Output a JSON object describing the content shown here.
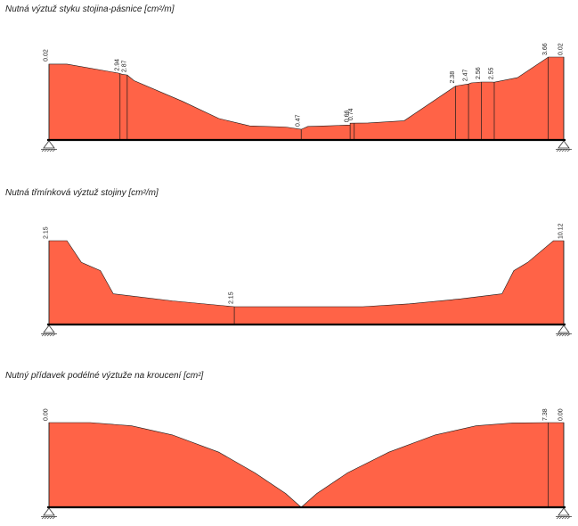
{
  "colors": {
    "fill": "#FF6347",
    "stroke": "#1a1a1a",
    "beam": "#000000"
  },
  "chart_data": [
    {
      "type": "area",
      "title": "Nutná výztuž styku stojina-pásnice [cm²/m]",
      "x_range": [
        0,
        100
      ],
      "ymax": 3.66,
      "profile": [
        [
          0,
          0.02
        ],
        [
          0,
          3.35
        ],
        [
          3.5,
          3.35
        ],
        [
          13.5,
          2.95
        ],
        [
          14.2,
          2.9
        ],
        [
          15.2,
          2.87
        ],
        [
          16.5,
          2.62
        ],
        [
          26,
          1.7
        ],
        [
          33,
          0.95
        ],
        [
          39,
          0.62
        ],
        [
          46,
          0.57
        ],
        [
          49,
          0.47
        ],
        [
          50.3,
          0.6
        ],
        [
          54,
          0.62
        ],
        [
          58.5,
          0.66
        ],
        [
          58.5,
          0.74
        ],
        [
          62,
          0.75
        ],
        [
          69,
          0.85
        ],
        [
          79,
          2.38
        ],
        [
          80,
          2.42
        ],
        [
          81.5,
          2.47
        ],
        [
          82,
          2.52
        ],
        [
          84,
          2.56
        ],
        [
          86,
          2.56
        ],
        [
          86.5,
          2.55
        ],
        [
          91,
          2.75
        ],
        [
          97,
          3.66
        ],
        [
          98.5,
          3.66
        ],
        [
          100,
          3.66
        ],
        [
          100,
          0.02
        ]
      ],
      "markers": [
        {
          "x": 0,
          "label": "0.02"
        },
        {
          "x": 13.8,
          "label": "2.94"
        },
        {
          "x": 15.2,
          "label": "2.87"
        },
        {
          "x": 49,
          "label": "0.47"
        },
        {
          "x": 58.5,
          "label": "0.66"
        },
        {
          "x": 59.3,
          "label": "0.74"
        },
        {
          "x": 79,
          "label": "2.38"
        },
        {
          "x": 81.5,
          "label": "2.47"
        },
        {
          "x": 84,
          "label": "2.56"
        },
        {
          "x": 86.5,
          "label": "2.55"
        },
        {
          "x": 97,
          "label": "3.66"
        },
        {
          "x": 100,
          "label": "0.02"
        }
      ]
    },
    {
      "type": "area",
      "title": "Nutná třmínková výztuž stojiny [cm²/m]",
      "x_range": [
        0,
        100
      ],
      "ymax": 10.12,
      "profile": [
        [
          0,
          2.15
        ],
        [
          0,
          10.12
        ],
        [
          3.5,
          10.12
        ],
        [
          6.3,
          7.5
        ],
        [
          10,
          6.5
        ],
        [
          12.5,
          3.7
        ],
        [
          24,
          2.85
        ],
        [
          36,
          2.15
        ],
        [
          50,
          2.15
        ],
        [
          61,
          2.15
        ],
        [
          70,
          2.5
        ],
        [
          80,
          3.1
        ],
        [
          88,
          3.7
        ],
        [
          90.3,
          6.5
        ],
        [
          93,
          7.5
        ],
        [
          98,
          10.12
        ],
        [
          100,
          10.12
        ],
        [
          100,
          0
        ]
      ],
      "markers": [
        {
          "x": 0,
          "label": "2.15"
        },
        {
          "x": 36,
          "label": "2.15"
        },
        {
          "x": 100,
          "label": "10.12"
        }
      ]
    },
    {
      "type": "area",
      "title": "Nutný přídavek podélné výztuže na kroucení [cm²]",
      "x_range": [
        0,
        100
      ],
      "ymax": 7.38,
      "profile": [
        [
          0,
          0
        ],
        [
          0,
          7.38
        ],
        [
          8,
          7.38
        ],
        [
          16,
          7.1
        ],
        [
          24,
          6.3
        ],
        [
          33,
          4.8
        ],
        [
          40,
          3.0
        ],
        [
          46,
          1.2
        ],
        [
          49,
          0
        ],
        [
          52,
          1.2
        ],
        [
          58,
          3.0
        ],
        [
          66,
          4.8
        ],
        [
          75,
          6.3
        ],
        [
          83,
          7.1
        ],
        [
          90,
          7.35
        ],
        [
          97,
          7.38
        ],
        [
          100,
          7.38
        ],
        [
          100,
          0
        ]
      ],
      "markers": [
        {
          "x": 0,
          "label": "0.00"
        },
        {
          "x": 97,
          "label": "7.38"
        },
        {
          "x": 100,
          "label": "0.00"
        }
      ]
    }
  ]
}
